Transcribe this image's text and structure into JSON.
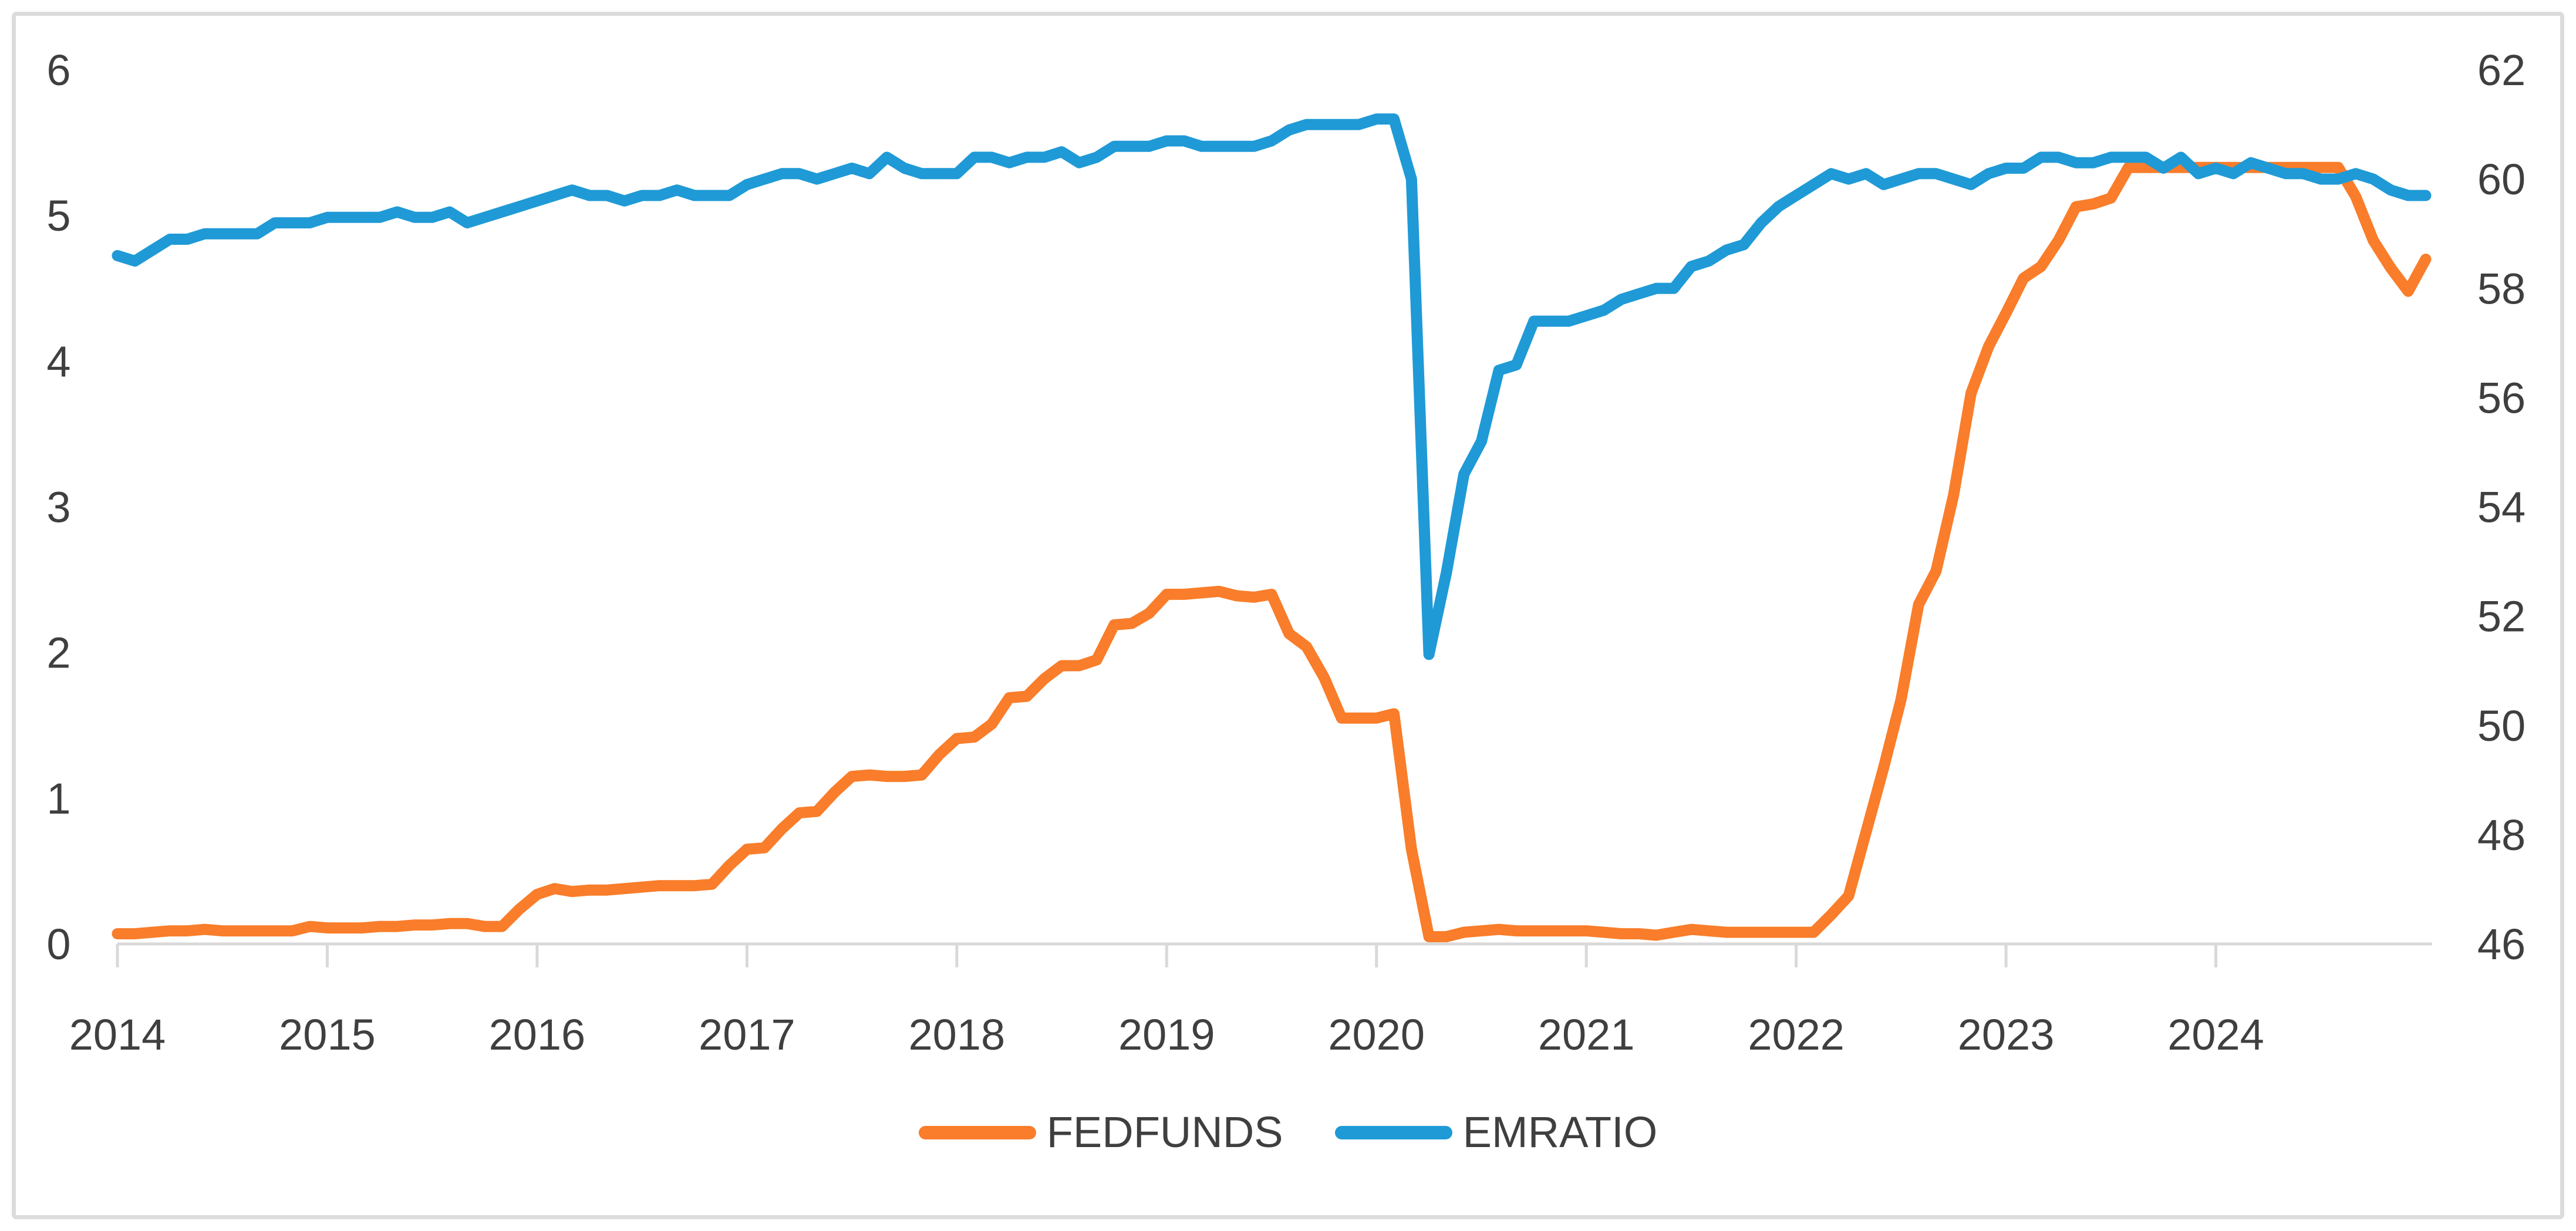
{
  "page": {
    "background": "#ffffff",
    "border_color": "#dcdcdc"
  },
  "legend": {
    "position": "bottom-center",
    "series": [
      {
        "label": "FEDFUNDS",
        "color": "#F97D2A"
      },
      {
        "label": "EMRATIO",
        "color": "#1F9AD6"
      }
    ]
  },
  "chart_data": {
    "type": "line",
    "title": "",
    "xlabel": "",
    "ylabel_left": "",
    "ylabel_right": "",
    "grid": "off",
    "legend_position": "bottom",
    "x_frequency": "monthly",
    "x_range": [
      "2014-01",
      "2025-01"
    ],
    "x_tick_labels": [
      "2014",
      "2015",
      "2016",
      "2017",
      "2018",
      "2019",
      "2020",
      "2021",
      "2022",
      "2023",
      "2024"
    ],
    "left_axis": {
      "ticks": [
        0,
        1,
        2,
        3,
        4,
        5,
        6
      ],
      "range": [
        0,
        6
      ],
      "series": "FEDFUNDS"
    },
    "right_axis": {
      "ticks": [
        46,
        48,
        50,
        52,
        54,
        56,
        58,
        60,
        62
      ],
      "range": [
        46,
        62
      ],
      "series": "EMRATIO"
    },
    "axis_color": "#d9d9d9",
    "tick_label_color": "#3f3f3f",
    "series": [
      {
        "name": "FEDFUNDS",
        "axis": "left",
        "color": "#F97D2A",
        "values": [
          0.07,
          0.07,
          0.08,
          0.09,
          0.09,
          0.1,
          0.09,
          0.09,
          0.09,
          0.09,
          0.09,
          0.12,
          0.11,
          0.11,
          0.11,
          0.12,
          0.12,
          0.13,
          0.13,
          0.14,
          0.14,
          0.12,
          0.12,
          0.24,
          0.34,
          0.38,
          0.36,
          0.37,
          0.37,
          0.38,
          0.39,
          0.4,
          0.4,
          0.4,
          0.41,
          0.54,
          0.65,
          0.66,
          0.79,
          0.9,
          0.91,
          1.04,
          1.15,
          1.16,
          1.15,
          1.15,
          1.16,
          1.3,
          1.41,
          1.42,
          1.51,
          1.69,
          1.7,
          1.82,
          1.91,
          1.91,
          1.95,
          2.19,
          2.2,
          2.27,
          2.4,
          2.4,
          2.41,
          2.42,
          2.39,
          2.38,
          2.4,
          2.13,
          2.04,
          1.83,
          1.55,
          1.55,
          1.55,
          1.58,
          0.65,
          0.05,
          0.05,
          0.08,
          0.09,
          0.1,
          0.09,
          0.09,
          0.09,
          0.09,
          0.09,
          0.08,
          0.07,
          0.07,
          0.06,
          0.08,
          0.1,
          0.09,
          0.08,
          0.08,
          0.08,
          0.08,
          0.08,
          0.08,
          0.2,
          0.33,
          0.77,
          1.21,
          1.68,
          2.33,
          2.56,
          3.08,
          3.78,
          4.1,
          4.33,
          4.57,
          4.65,
          4.83,
          5.06,
          5.08,
          5.12,
          5.33,
          5.33,
          5.33,
          5.33,
          5.33,
          5.33,
          5.33,
          5.33,
          5.33,
          5.33,
          5.33,
          5.33,
          5.33,
          5.13,
          4.83,
          4.64,
          4.48,
          4.7
        ]
      },
      {
        "name": "EMRATIO",
        "axis": "right",
        "color": "#1F9AD6",
        "values": [
          58.6,
          58.5,
          58.7,
          58.9,
          58.9,
          59.0,
          59.0,
          59.0,
          59.0,
          59.2,
          59.2,
          59.2,
          59.3,
          59.3,
          59.3,
          59.3,
          59.4,
          59.3,
          59.3,
          59.4,
          59.2,
          59.3,
          59.4,
          59.5,
          59.6,
          59.7,
          59.8,
          59.7,
          59.7,
          59.6,
          59.7,
          59.7,
          59.8,
          59.7,
          59.7,
          59.7,
          59.9,
          60.0,
          60.1,
          60.1,
          60.0,
          60.1,
          60.2,
          60.1,
          60.4,
          60.2,
          60.1,
          60.1,
          60.1,
          60.4,
          60.4,
          60.3,
          60.4,
          60.4,
          60.5,
          60.3,
          60.4,
          60.6,
          60.6,
          60.6,
          60.7,
          60.7,
          60.6,
          60.6,
          60.6,
          60.6,
          60.7,
          60.9,
          61.0,
          61.0,
          61.0,
          61.0,
          61.1,
          61.1,
          60.0,
          51.3,
          52.8,
          54.6,
          55.2,
          56.5,
          56.6,
          57.4,
          57.4,
          57.4,
          57.5,
          57.6,
          57.8,
          57.9,
          58.0,
          58.0,
          58.4,
          58.5,
          58.7,
          58.8,
          59.2,
          59.5,
          59.7,
          59.9,
          60.1,
          60.0,
          60.1,
          59.9,
          60.0,
          60.1,
          60.1,
          60.0,
          59.9,
          60.1,
          60.2,
          60.2,
          60.4,
          60.4,
          60.3,
          60.3,
          60.4,
          60.4,
          60.4,
          60.2,
          60.4,
          60.1,
          60.2,
          60.1,
          60.3,
          60.2,
          60.1,
          60.1,
          60.0,
          60.0,
          60.1,
          60.0,
          59.8,
          59.7,
          59.7
        ]
      }
    ]
  }
}
